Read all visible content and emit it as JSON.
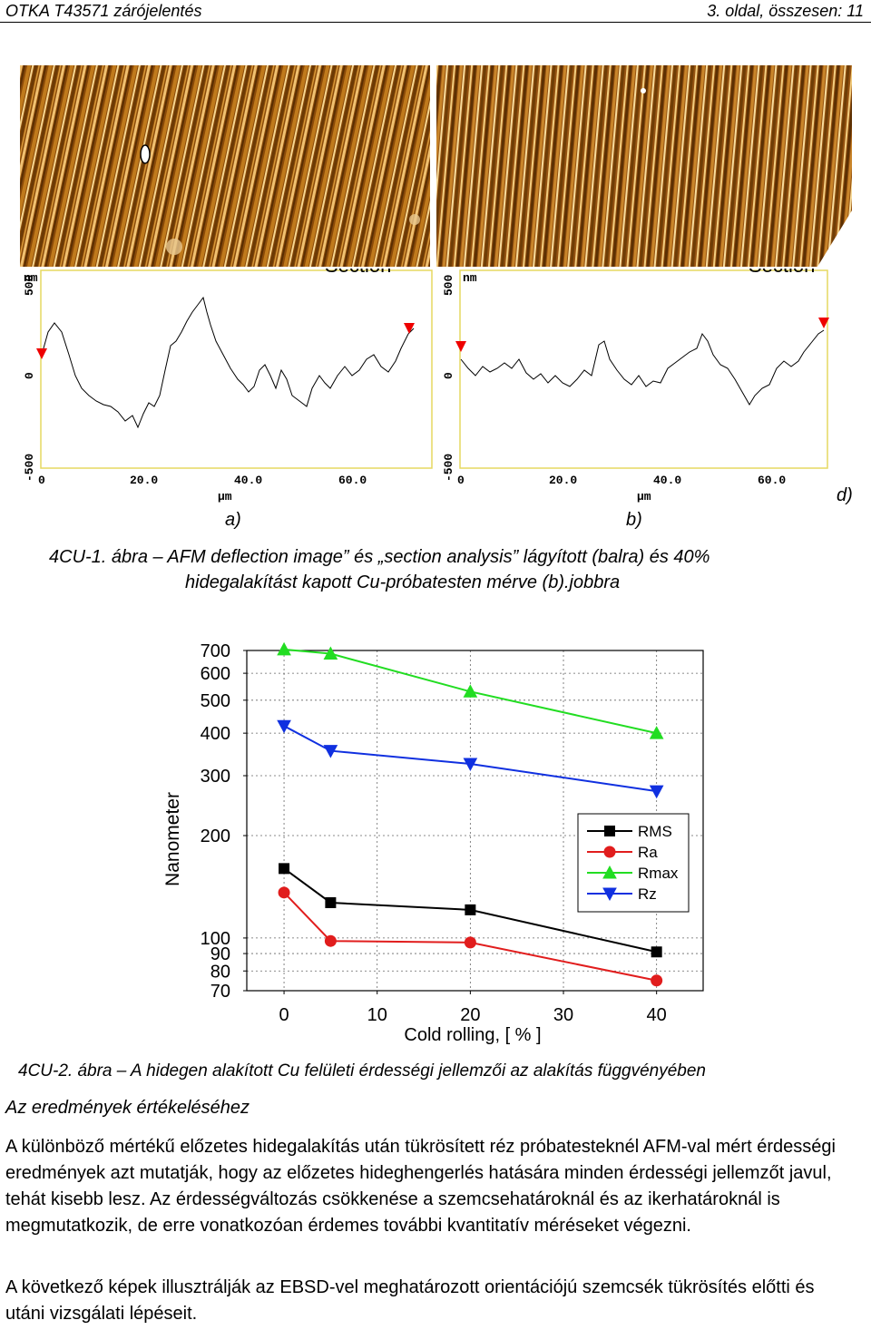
{
  "header": {
    "left": "OTKA T43571 zárójelentés",
    "right": "3. oldal, összesen: 11"
  },
  "afm_section": {
    "y_unit": "nm",
    "x_unit": "µm",
    "title_fragment": "Section",
    "y_ticks": [
      "500",
      "0",
      "-500"
    ],
    "x_ticks": [
      "0",
      "20.0",
      "40.0",
      "60.0"
    ]
  },
  "labels": {
    "a": "a)",
    "b": "b)",
    "d": "d)"
  },
  "caption1": {
    "line1": "4CU-1. ábra – AFM deflection image” és „section analysis” lágyított (balra) és 40%",
    "line2": "hidegalakítást kapott Cu-próbatesten mérve (b).jobbra"
  },
  "chart_data": {
    "type": "line",
    "xlabel": "Cold rolling, [ % ]",
    "ylabel": "Nanometer",
    "xlim": [
      -4,
      45
    ],
    "ylim": [
      70,
      700
    ],
    "y_scale": "log",
    "x_ticks": [
      0,
      10,
      20,
      30,
      40
    ],
    "y_ticks": [
      70,
      80,
      90,
      100,
      200,
      300,
      400,
      500,
      600,
      700
    ],
    "x_tick_labels": [
      "0",
      "10",
      "20",
      "30",
      "40"
    ],
    "y_tick_labels": [
      "70",
      "80",
      "90",
      "100",
      "200",
      "300",
      "400",
      "500",
      "600",
      "700"
    ],
    "grid": true,
    "legend_position": "right",
    "series": [
      {
        "name": "RMS",
        "color": "#000000",
        "marker": "square",
        "x": [
          0,
          5,
          20,
          40
        ],
        "values": [
          160,
          127,
          121,
          91
        ]
      },
      {
        "name": "Ra",
        "color": "#e11d1d",
        "marker": "circle",
        "x": [
          0,
          5,
          20,
          40
        ],
        "values": [
          136,
          98,
          97,
          75
        ]
      },
      {
        "name": "Rmax",
        "color": "#22dd22",
        "marker": "triangle-up",
        "x": [
          0,
          5,
          20,
          40
        ],
        "values": [
          705,
          685,
          530,
          400
        ]
      },
      {
        "name": "Rz",
        "color": "#1030e0",
        "marker": "triangle-down",
        "x": [
          0,
          5,
          20,
          40
        ],
        "values": [
          420,
          355,
          325,
          270
        ]
      }
    ]
  },
  "caption2": "4CU-2. ábra – A hidegen alakított Cu felületi érdességi jellemzői az alakítás függvényében",
  "heading": "Az eredmények értékeléséhez",
  "paragraph1": "A különböző mértékű előzetes hidegalakítás után tükrösített réz próbatesteknél AFM-val mért érdességi eredmények azt mutatják, hogy az előzetes hideghengerlés hatására minden érdességi jellemzőt javul, tehát kisebb lesz. Az érdességváltozás csökkenése a szemcsehatároknál és az ikerhatároknál is megmutatkozik, de erre vonatkozóan érdemes további kvantitatív méréseket végezni.",
  "paragraph2": "A következő képek illusztrálják az EBSD-vel meghatározott orientációjú szemcsék tükrösítés előtti és utáni vizsgálati lépéseit."
}
